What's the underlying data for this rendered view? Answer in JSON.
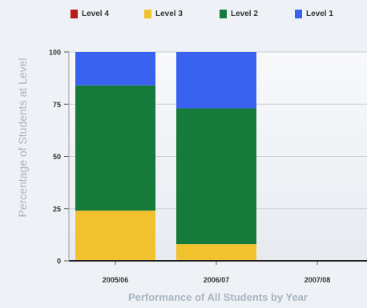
{
  "chart_data": {
    "type": "bar",
    "stacked": true,
    "categories": [
      "2005/06",
      "2006/07",
      "2007/08"
    ],
    "series": [
      {
        "name": "Level 4",
        "color": "#b71c1c",
        "values": [
          0,
          0,
          0
        ]
      },
      {
        "name": "Level 3",
        "color": "#f2c12e",
        "values": [
          24,
          8,
          0
        ]
      },
      {
        "name": "Level 2",
        "color": "#167a3a",
        "values": [
          60,
          65,
          0
        ]
      },
      {
        "name": "Level 1",
        "color": "#3a62f0",
        "values": [
          16,
          27,
          0
        ]
      }
    ],
    "stack_order": [
      "Level 3",
      "Level 2",
      "Level 1",
      "Level 4"
    ],
    "legend_order": [
      "Level 4",
      "Level 3",
      "Level 2",
      "Level 1"
    ],
    "ylim": [
      0,
      100
    ],
    "yticks": [
      0,
      25,
      50,
      75,
      100
    ],
    "ylabel": "Percentage of Students at Level",
    "xlabel": "Performance of All Students by Year",
    "legend_position": "top",
    "grid": true
  }
}
